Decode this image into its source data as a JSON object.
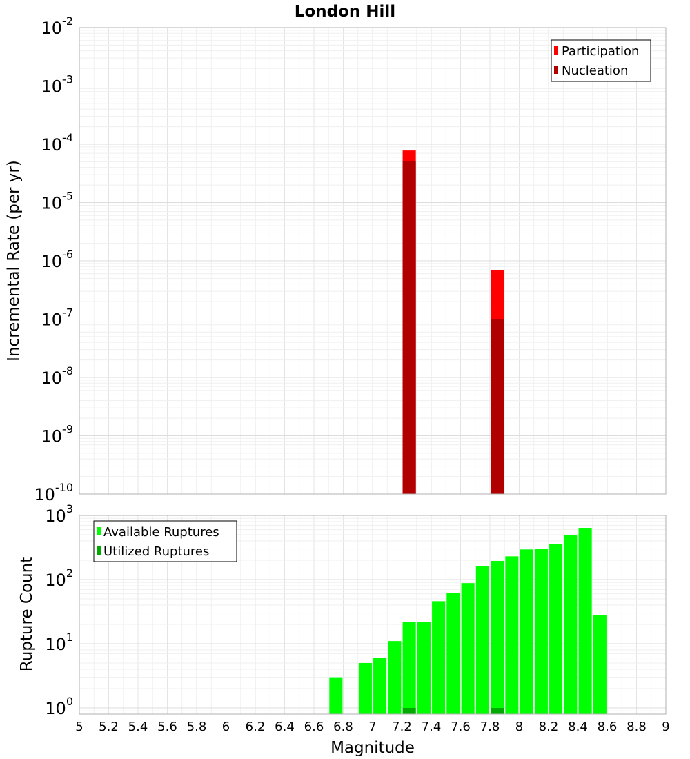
{
  "chart_data": [
    {
      "type": "bar",
      "title": "London Hill",
      "xlabel": "",
      "ylabel": "Incremental Rate (per yr)",
      "xlim": [
        5,
        9
      ],
      "ylim": [
        1e-10,
        0.01
      ],
      "y_scale": "log",
      "grid": true,
      "legend_position": "top-right",
      "ytick_exponents": [
        "-10",
        "-9",
        "-8",
        "-7",
        "-6",
        "-5",
        "-4",
        "-3",
        "-2"
      ],
      "ytick_base": "10",
      "series": [
        {
          "name": "Participation",
          "color": "#ff0000",
          "x": [
            7.25,
            7.85
          ],
          "values": [
            7.8e-05,
            7e-07
          ]
        },
        {
          "name": "Nucleation",
          "color": "#b00000",
          "x": [
            7.25,
            7.85
          ],
          "values": [
            5.2e-05,
            1e-07
          ]
        }
      ]
    },
    {
      "type": "bar",
      "title": "",
      "xlabel": "Magnitude",
      "ylabel": "Rupture Count",
      "xlim": [
        5,
        9
      ],
      "ylim": [
        0.8,
        1000
      ],
      "y_scale": "log",
      "grid": true,
      "legend_position": "top-left",
      "ytick_exponents": [
        "0",
        "1",
        "2",
        "3"
      ],
      "ytick_base": "10",
      "xticks": [
        "5",
        "5.2",
        "5.4",
        "5.6",
        "5.8",
        "6",
        "6.2",
        "6.4",
        "6.6",
        "6.8",
        "7",
        "7.2",
        "7.4",
        "7.6",
        "7.8",
        "8",
        "8.2",
        "8.4",
        "8.6",
        "8.8",
        "9"
      ],
      "series": [
        {
          "name": "Available Ruptures",
          "color": "#00ff00",
          "x": [
            6.75,
            6.95,
            7.05,
            7.15,
            7.25,
            7.35,
            7.45,
            7.55,
            7.65,
            7.75,
            7.85,
            7.95,
            8.05,
            8.15,
            8.25,
            8.35,
            8.45,
            8.55
          ],
          "values": [
            3,
            5,
            6,
            11,
            22,
            22,
            46,
            62,
            88,
            160,
            195,
            230,
            295,
            300,
            355,
            490,
            640,
            28
          ]
        },
        {
          "name": "Utilized Ruptures",
          "color": "#00aa00",
          "x": [
            7.25,
            7.85
          ],
          "values": [
            1,
            1
          ]
        }
      ]
    }
  ]
}
